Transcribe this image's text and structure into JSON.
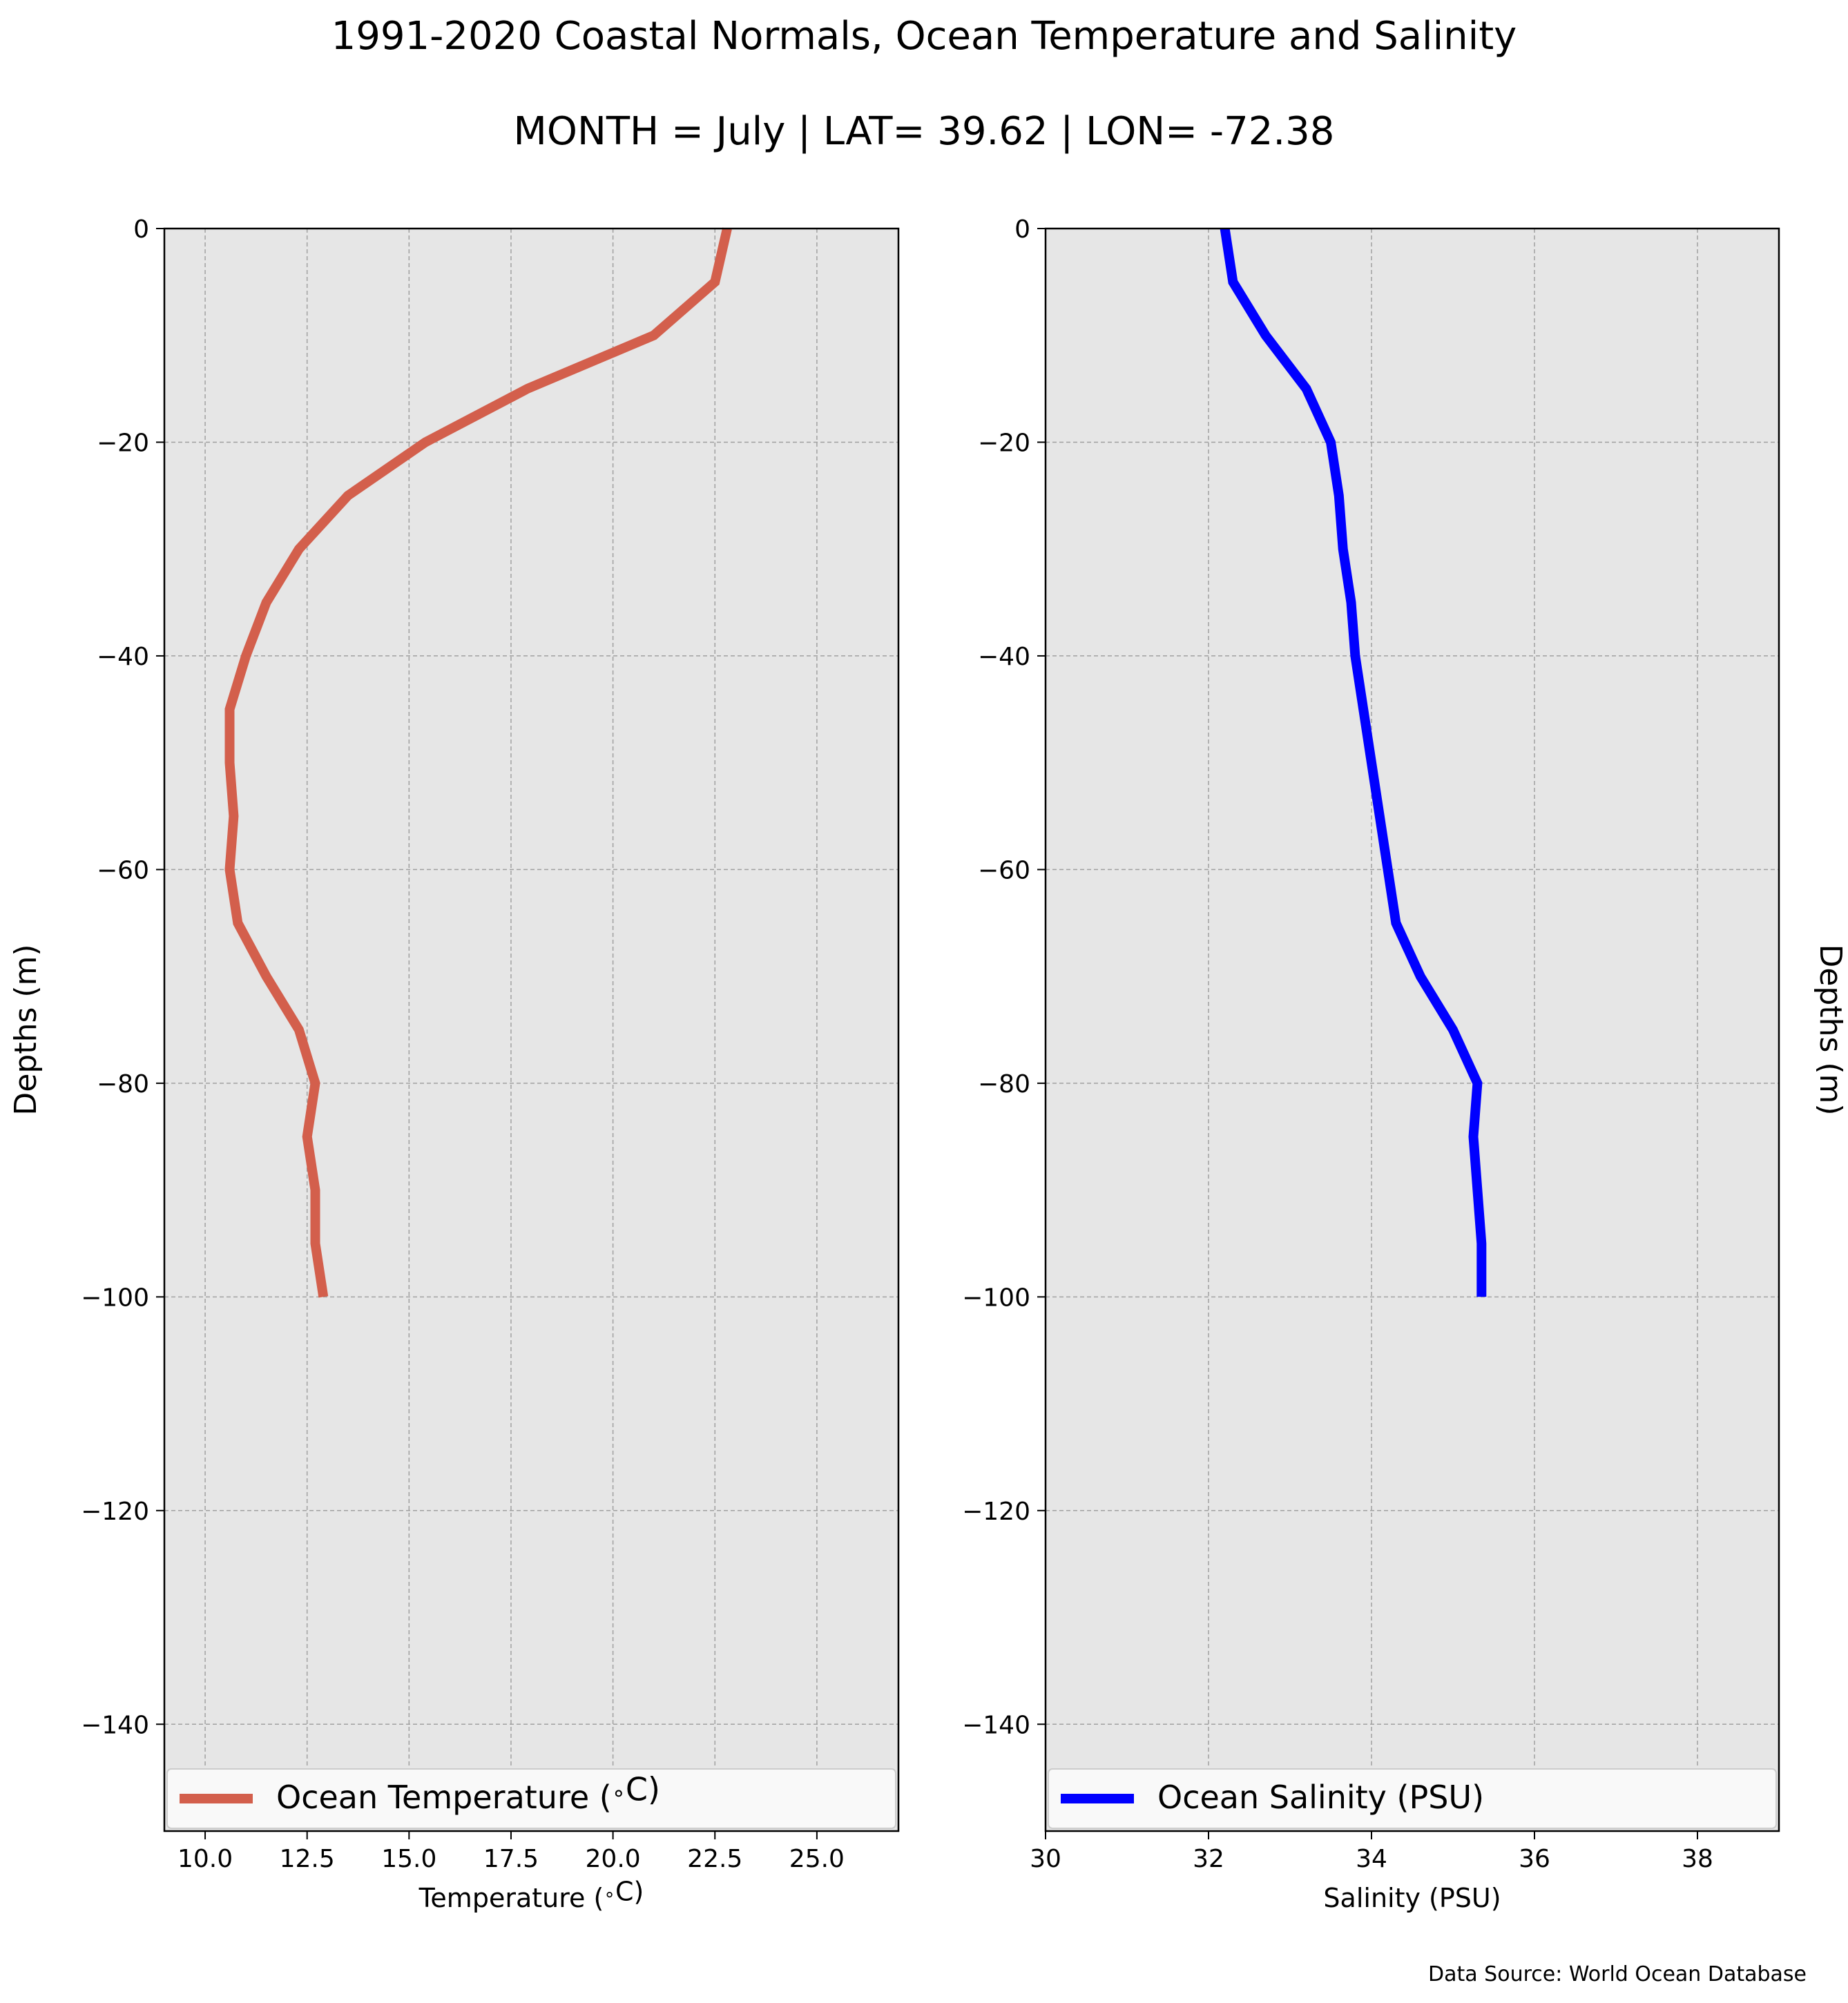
{
  "title": "1991-2020 Coastal Normals, Ocean Temperature and Salinity",
  "subtitle": "MONTH = July | LAT= 39.62 | LON= -72.38",
  "source": "Data Source: World Ocean Database",
  "colors": {
    "temperature": "#d35f4c",
    "salinity": "#0000ff",
    "axes_bg": "#e6e6e6",
    "grid": "#a0a0a0"
  },
  "chart_data": [
    {
      "type": "line",
      "xlabel": "Temperature ($^\\circ$C)",
      "ylabel": "Depths (m)",
      "xlim": [
        9,
        27
      ],
      "ylim": [
        -150,
        0
      ],
      "xticks": [
        10.0,
        12.5,
        15.0,
        17.5,
        20.0,
        22.5,
        25.0
      ],
      "xtick_labels": [
        "10.0",
        "12.5",
        "15.0",
        "17.5",
        "20.0",
        "22.5",
        "25.0"
      ],
      "yticks": [
        0,
        -20,
        -40,
        -60,
        -80,
        -100,
        -120,
        -140
      ],
      "ytick_labels": [
        "0",
        "−20",
        "−40",
        "−60",
        "−80",
        "−100",
        "−120",
        "−140"
      ],
      "grid": true,
      "legend": "bottom",
      "series": [
        {
          "name": "Ocean Temperature ($^\\circ$C)",
          "color": "#d35f4c",
          "x": [
            22.8,
            22.5,
            21.0,
            17.9,
            15.4,
            13.5,
            12.3,
            11.5,
            11.0,
            10.6,
            10.6,
            10.7,
            10.6,
            10.8,
            11.5,
            12.3,
            12.7,
            12.5,
            12.7,
            12.7,
            12.9
          ],
          "y": [
            0,
            -5,
            -10,
            -15,
            -20,
            -25,
            -30,
            -35,
            -40,
            -45,
            -50,
            -55,
            -60,
            -65,
            -70,
            -75,
            -80,
            -85,
            -90,
            -95,
            -100
          ]
        }
      ]
    },
    {
      "type": "line",
      "xlabel": "Salinity (PSU)",
      "ylabel": "Depths (m)",
      "xlim": [
        30,
        39
      ],
      "ylim": [
        -150,
        0
      ],
      "xticks": [
        30,
        32,
        34,
        36,
        38
      ],
      "xtick_labels": [
        "30",
        "32",
        "34",
        "36",
        "38"
      ],
      "yticks": [
        0,
        -20,
        -40,
        -60,
        -80,
        -100,
        -120,
        -140
      ],
      "ytick_labels": [
        "0",
        "−20",
        "−40",
        "−60",
        "−80",
        "−100",
        "−120",
        "−140"
      ],
      "grid": true,
      "legend": "bottom",
      "series": [
        {
          "name": "Ocean Salinity (PSU)",
          "color": "#0000ff",
          "x": [
            32.2,
            32.3,
            32.7,
            33.2,
            33.5,
            33.6,
            33.65,
            33.75,
            33.8,
            33.9,
            34.0,
            34.1,
            34.2,
            34.3,
            34.6,
            35.0,
            35.3,
            35.25,
            35.3,
            35.35,
            35.35
          ],
          "y": [
            0,
            -5,
            -10,
            -15,
            -20,
            -25,
            -30,
            -35,
            -40,
            -45,
            -50,
            -55,
            -60,
            -65,
            -70,
            -75,
            -80,
            -85,
            -90,
            -95,
            -100
          ]
        }
      ]
    }
  ]
}
